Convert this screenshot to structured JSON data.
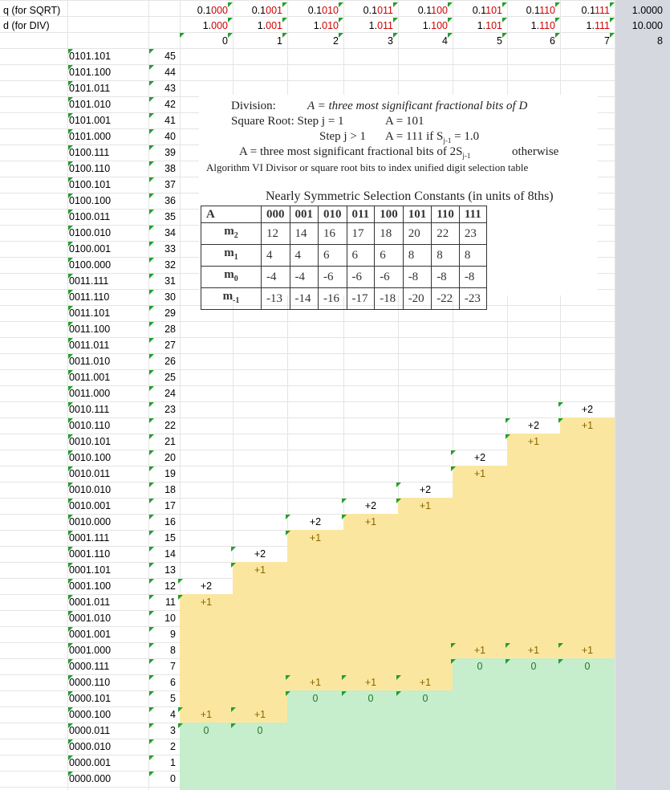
{
  "labels": {
    "q": "q (for SQRT)",
    "d": "d (for DIV)"
  },
  "q_values": [
    "0.1000",
    "0.1001",
    "0.1010",
    "0.1011",
    "0.1100",
    "0.1101",
    "0.1110",
    "0.1111",
    "1.0000"
  ],
  "d_values": [
    "1.000",
    "1.001",
    "1.010",
    "1.011",
    "1.100",
    "1.101",
    "1.110",
    "1.111",
    "10.000"
  ],
  "col_index": [
    "0",
    "1",
    "2",
    "3",
    "4",
    "5",
    "6",
    "7",
    "8"
  ],
  "rows": [
    {
      "bin": "0101.101",
      "n": "45"
    },
    {
      "bin": "0101.100",
      "n": "44"
    },
    {
      "bin": "0101.011",
      "n": "43"
    },
    {
      "bin": "0101.010",
      "n": "42"
    },
    {
      "bin": "0101.001",
      "n": "41"
    },
    {
      "bin": "0101.000",
      "n": "40"
    },
    {
      "bin": "0100.111",
      "n": "39"
    },
    {
      "bin": "0100.110",
      "n": "38"
    },
    {
      "bin": "0100.101",
      "n": "37"
    },
    {
      "bin": "0100.100",
      "n": "36"
    },
    {
      "bin": "0100.011",
      "n": "35"
    },
    {
      "bin": "0100.010",
      "n": "34"
    },
    {
      "bin": "0100.001",
      "n": "33"
    },
    {
      "bin": "0100.000",
      "n": "32"
    },
    {
      "bin": "0011.111",
      "n": "31"
    },
    {
      "bin": "0011.110",
      "n": "30"
    },
    {
      "bin": "0011.101",
      "n": "29"
    },
    {
      "bin": "0011.100",
      "n": "28"
    },
    {
      "bin": "0011.011",
      "n": "27"
    },
    {
      "bin": "0011.010",
      "n": "26"
    },
    {
      "bin": "0011.001",
      "n": "25"
    },
    {
      "bin": "0011.000",
      "n": "24"
    },
    {
      "bin": "0010.111",
      "n": "23"
    },
    {
      "bin": "0010.110",
      "n": "22"
    },
    {
      "bin": "0010.101",
      "n": "21"
    },
    {
      "bin": "0010.100",
      "n": "20"
    },
    {
      "bin": "0010.011",
      "n": "19"
    },
    {
      "bin": "0010.010",
      "n": "18"
    },
    {
      "bin": "0010.001",
      "n": "17"
    },
    {
      "bin": "0010.000",
      "n": "16"
    },
    {
      "bin": "0001.111",
      "n": "15"
    },
    {
      "bin": "0001.110",
      "n": "14"
    },
    {
      "bin": "0001.101",
      "n": "13"
    },
    {
      "bin": "0001.100",
      "n": "12"
    },
    {
      "bin": "0001.011",
      "n": "11"
    },
    {
      "bin": "0001.010",
      "n": "10"
    },
    {
      "bin": "0001.001",
      "n": "9"
    },
    {
      "bin": "0001.000",
      "n": "8"
    },
    {
      "bin": "0000.111",
      "n": "7"
    },
    {
      "bin": "0000.110",
      "n": "6"
    },
    {
      "bin": "0000.101",
      "n": "5"
    },
    {
      "bin": "0000.100",
      "n": "4"
    },
    {
      "bin": "0000.011",
      "n": "3"
    },
    {
      "bin": "0000.010",
      "n": "2"
    },
    {
      "bin": "0000.001",
      "n": "1"
    },
    {
      "bin": "0000.000",
      "n": "0"
    }
  ],
  "digit_marks": [
    {
      "col": 0,
      "row": "12",
      "text": "+2"
    },
    {
      "col": 0,
      "row": "11",
      "text": "+1"
    },
    {
      "col": 1,
      "row": "14",
      "text": "+2"
    },
    {
      "col": 1,
      "row": "13",
      "text": "+1"
    },
    {
      "col": 2,
      "row": "16",
      "text": "+2"
    },
    {
      "col": 2,
      "row": "15",
      "text": "+1"
    },
    {
      "col": 3,
      "row": "17",
      "text": "+2"
    },
    {
      "col": 3,
      "row": "16",
      "text": "+1"
    },
    {
      "col": 4,
      "row": "18",
      "text": "+2"
    },
    {
      "col": 4,
      "row": "17",
      "text": "+1"
    },
    {
      "col": 5,
      "row": "20",
      "text": "+2"
    },
    {
      "col": 5,
      "row": "19",
      "text": "+1"
    },
    {
      "col": 6,
      "row": "22",
      "text": "+2"
    },
    {
      "col": 6,
      "row": "21",
      "text": "+1"
    },
    {
      "col": 7,
      "row": "23",
      "text": "+2"
    },
    {
      "col": 7,
      "row": "22",
      "text": "+1"
    },
    {
      "col": 0,
      "row": "4",
      "text": "+1"
    },
    {
      "col": 0,
      "row": "3",
      "text": "0"
    },
    {
      "col": 1,
      "row": "4",
      "text": "+1"
    },
    {
      "col": 1,
      "row": "3",
      "text": "0"
    },
    {
      "col": 2,
      "row": "6",
      "text": "+1"
    },
    {
      "col": 2,
      "row": "5",
      "text": "0"
    },
    {
      "col": 3,
      "row": "6",
      "text": "+1"
    },
    {
      "col": 3,
      "row": "5",
      "text": "0"
    },
    {
      "col": 4,
      "row": "6",
      "text": "+1"
    },
    {
      "col": 4,
      "row": "5",
      "text": "0"
    },
    {
      "col": 5,
      "row": "8",
      "text": "+1"
    },
    {
      "col": 5,
      "row": "7",
      "text": "0"
    },
    {
      "col": 6,
      "row": "8",
      "text": "+1"
    },
    {
      "col": 6,
      "row": "7",
      "text": "0"
    },
    {
      "col": 7,
      "row": "8",
      "text": "+1"
    },
    {
      "col": 7,
      "row": "7",
      "text": "0"
    }
  ],
  "overlay": {
    "line1a": "Division:",
    "line1b": "A = three most significant fractional bits of D",
    "line2a": "Square Root:  Step j = 1",
    "line2b": "A = 101",
    "line3a": "Step j > 1",
    "line3b": "A = 111  if S",
    "line3sub": "j-1",
    "line3c": " = 1.0",
    "line4a": "A = three most significant fractional bits of 2S",
    "line4sub": "j-1",
    "line4b": "otherwise",
    "line5": "Algorithm VI Divisor or square root bits to index unified digit selection table",
    "table_title": "Nearly Symmetric Selection Constants (in units of 8ths)",
    "header": [
      "A",
      "000",
      "001",
      "010",
      "011",
      "100",
      "101",
      "110",
      "111"
    ],
    "table_rows": [
      {
        "name": "m",
        "sub": "2",
        "vals": [
          "12",
          "14",
          "16",
          "17",
          "18",
          "20",
          "22",
          "23"
        ]
      },
      {
        "name": "m",
        "sub": "1",
        "vals": [
          "4",
          "4",
          "6",
          "6",
          "6",
          "8",
          "8",
          "8"
        ]
      },
      {
        "name": "m",
        "sub": "0",
        "vals": [
          "-4",
          "-4",
          "-6",
          "-6",
          "-6",
          "-8",
          "-8",
          "-8"
        ]
      },
      {
        "name": "m",
        "sub": "-1",
        "vals": [
          "-13",
          "-14",
          "-16",
          "-17",
          "-18",
          "-20",
          "-22",
          "-23"
        ]
      }
    ]
  },
  "colors": {
    "yellow": "#fbe69f",
    "green": "#c6edcc",
    "red": "#d00000",
    "marker": "#1fa02b"
  }
}
